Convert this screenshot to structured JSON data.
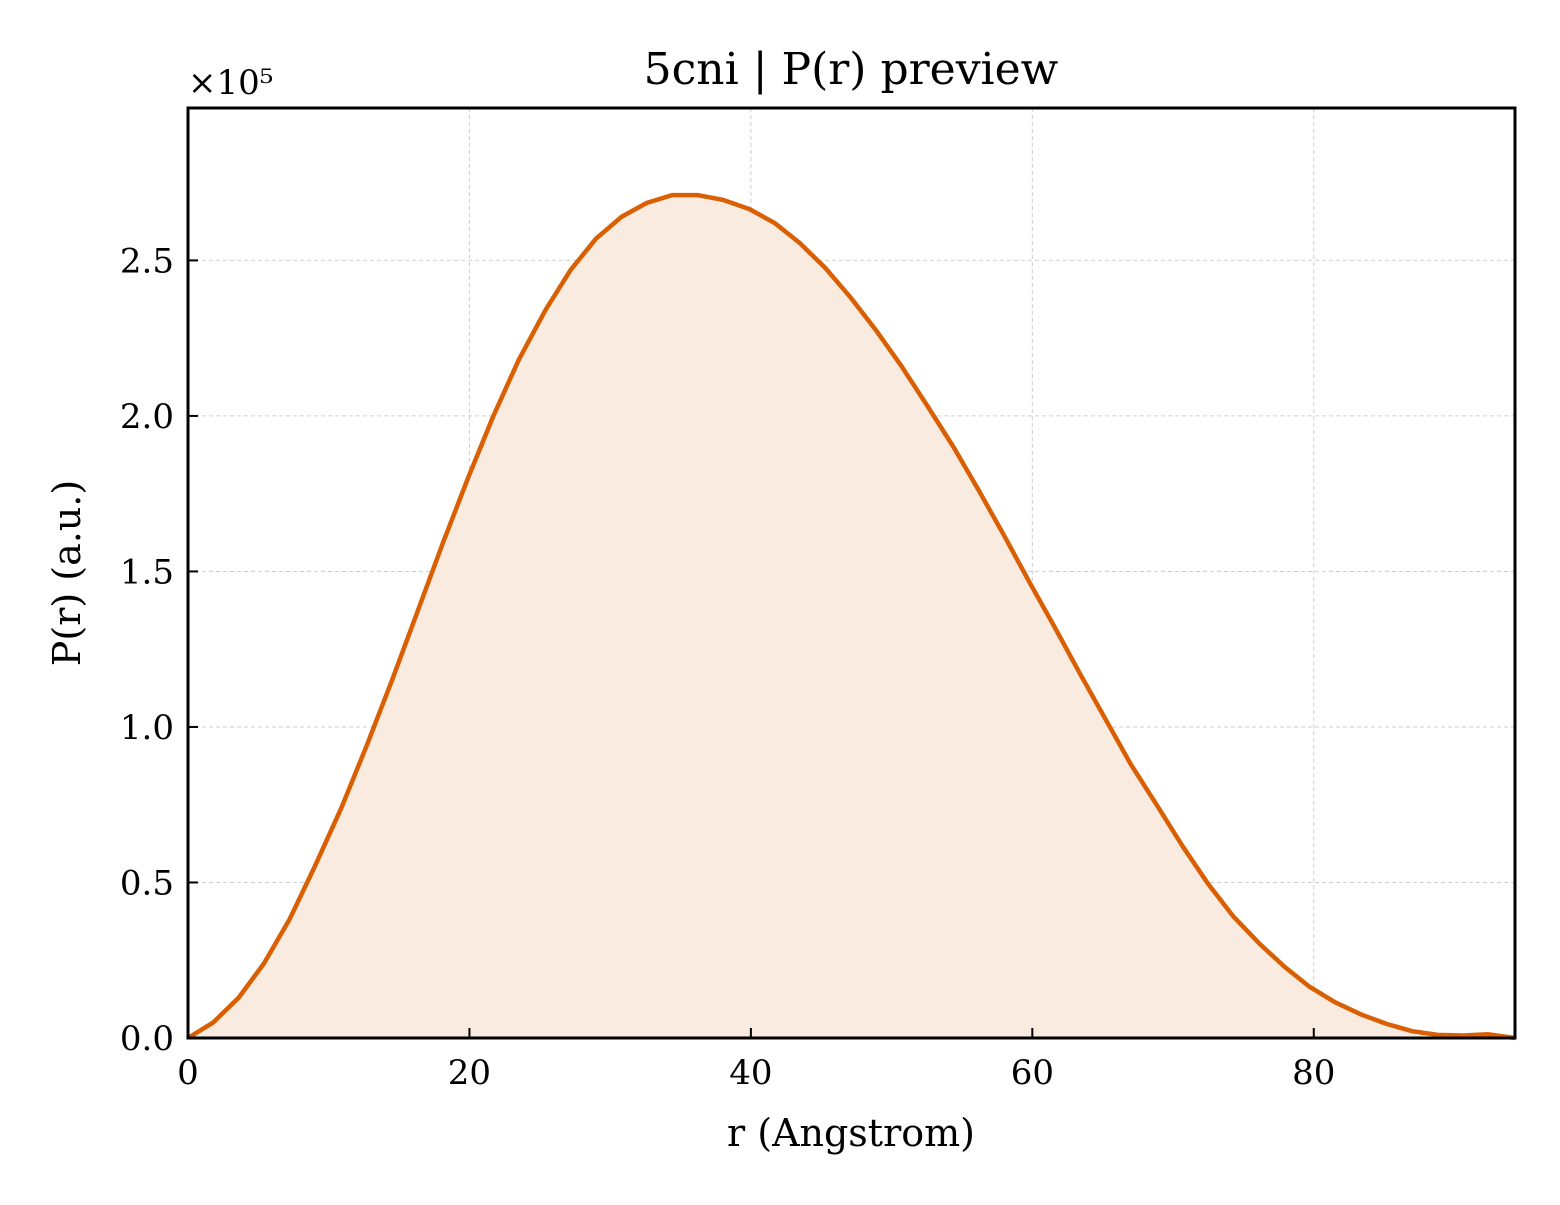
{
  "chart_data": {
    "type": "area",
    "title": "5cni | P(r) preview",
    "xlabel": "r (Angstrom)",
    "ylabel": "P(r) (a.u.)",
    "y_offset_label": "×10⁵",
    "xlim": [
      0,
      94.3
    ],
    "ylim": [
      0,
      2.99
    ],
    "y_scale_exponent": 5,
    "grid": true,
    "legend": "none",
    "colors": {
      "line": "#d95f02",
      "fill": "#f9ebe0"
    },
    "x_ticks": [
      {
        "value": 0,
        "label": "0"
      },
      {
        "value": 20,
        "label": "20"
      },
      {
        "value": 40,
        "label": "40"
      },
      {
        "value": 60,
        "label": "60"
      },
      {
        "value": 80,
        "label": "80"
      }
    ],
    "y_ticks": [
      {
        "value": 0,
        "label": "0.0"
      },
      {
        "value": 0.5,
        "label": "0.5"
      },
      {
        "value": 1.0,
        "label": "1.0"
      },
      {
        "value": 1.5,
        "label": "1.5"
      },
      {
        "value": 2.0,
        "label": "2.0"
      },
      {
        "value": 2.5,
        "label": "2.5"
      }
    ],
    "x": [
      0,
      1.8,
      3.6,
      5.4,
      7.2,
      9.0,
      10.9,
      12.7,
      14.5,
      16.3,
      18.1,
      19.9,
      21.7,
      23.5,
      25.4,
      27.2,
      29.0,
      30.8,
      32.6,
      34.4,
      36.2,
      38.0,
      39.9,
      41.7,
      43.5,
      45.3,
      47.1,
      48.9,
      50.7,
      52.5,
      54.4,
      56.2,
      58.0,
      59.8,
      61.6,
      63.4,
      65.2,
      67.0,
      68.9,
      70.7,
      72.5,
      74.3,
      76.1,
      77.9,
      79.7,
      81.5,
      83.4,
      85.2,
      87.0,
      88.8,
      90.6,
      92.4,
      94.3
    ],
    "y": [
      0.0,
      0.05,
      0.13,
      0.24,
      0.38,
      0.55,
      0.74,
      0.94,
      1.15,
      1.37,
      1.59,
      1.8,
      2.0,
      2.18,
      2.34,
      2.47,
      2.57,
      2.64,
      2.685,
      2.71,
      2.71,
      2.695,
      2.665,
      2.62,
      2.555,
      2.475,
      2.38,
      2.275,
      2.16,
      2.035,
      1.9,
      1.76,
      1.615,
      1.465,
      1.32,
      1.17,
      1.025,
      0.88,
      0.745,
      0.615,
      0.495,
      0.39,
      0.305,
      0.23,
      0.165,
      0.115,
      0.075,
      0.045,
      0.022,
      0.01,
      0.008,
      0.012,
      0.0
    ]
  }
}
